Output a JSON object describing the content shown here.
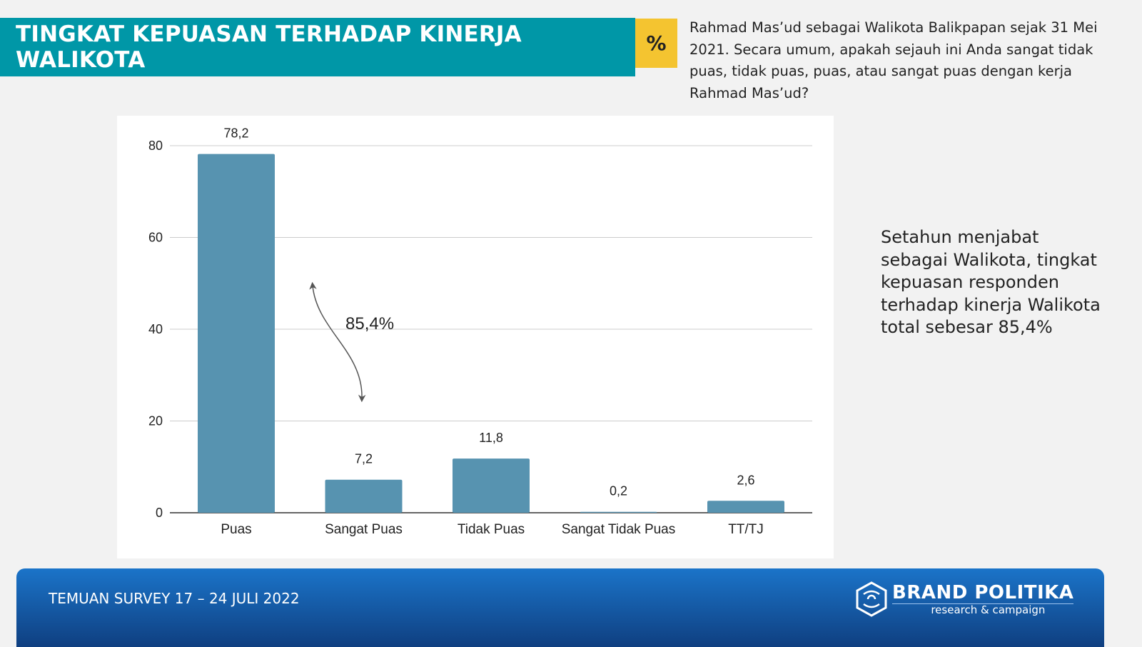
{
  "header": {
    "title": "TINGKAT KEPUASAN TERHADAP KINERJA WALIKOTA",
    "unit_badge": "%",
    "question": "Rahmad Mas’ud sebagai Walikota Balikpapan sejak 31 Mei 2021. Secara umum, apakah sejauh ini Anda sangat tidak puas, tidak puas, puas, atau sangat puas dengan kerja Rahmad Mas’ud?"
  },
  "summary": "Setahun menjabat sebagai Walikota, tingkat kepuasan responden terhadap kinerja Walikota total sebesar 85,4%",
  "footer": {
    "text": "TEMUAN SURVEY 17 – 24  JULI 2022",
    "logo_name": "BRAND POLITIKA",
    "logo_sub": "research & campaign"
  },
  "chart_data": {
    "type": "bar",
    "title": "",
    "xlabel": "",
    "ylabel": "",
    "categories": [
      "Puas",
      "Sangat Puas",
      "Tidak Puas",
      "Sangat Tidak Puas",
      "TT/TJ"
    ],
    "values": [
      78.2,
      7.2,
      11.8,
      0.2,
      2.6
    ],
    "value_labels": [
      "78,2",
      "7,2",
      "11,8",
      "0,2",
      "2,6"
    ],
    "ylim": [
      0,
      80
    ],
    "yticks": [
      0,
      20,
      40,
      60,
      80
    ],
    "grid": true,
    "bar_color": "#5793b0",
    "annotation": "85,4%"
  }
}
